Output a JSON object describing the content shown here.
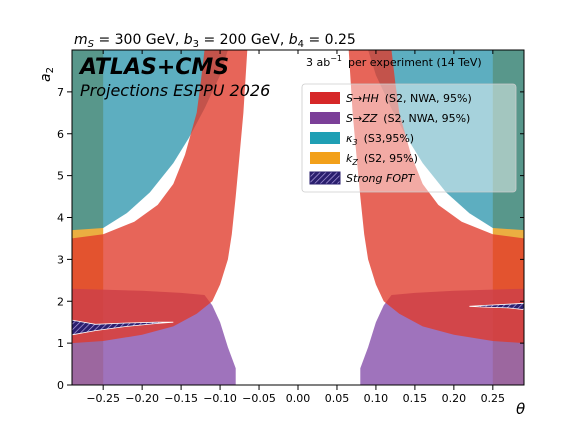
{
  "chart_data": {
    "type": "area",
    "title": "m_S = 300 GeV, b_3 = 200 GeV, b_4 = 0.25",
    "title_parts": {
      "ms_sym": "m",
      "ms_sub": "S",
      "ms_val": " = 300 GeV, ",
      "b3_sym": "b",
      "b3_sub": "3",
      "b3_val": " = 200 GeV, ",
      "b4_sym": "b",
      "b4_sub": "4",
      "b4_val": " = 0.25"
    },
    "experiment": "ATLAS+CMS",
    "projection": "Projections ESPPU 2026",
    "lumi": {
      "value": "3 ab",
      "exponent": "−1",
      "text": "per experiment (14 TeV)"
    },
    "xlabel": "θ",
    "ylabel_sym": "a",
    "ylabel_sub": "2",
    "xlim": [
      -0.29,
      0.29
    ],
    "ylim": [
      0,
      8
    ],
    "xticks": [
      -0.25,
      -0.2,
      -0.15,
      -0.1,
      -0.05,
      0.0,
      0.05,
      0.1,
      0.15,
      0.2,
      0.25
    ],
    "xtick_labels": [
      "−0.25",
      "−0.20",
      "−0.15",
      "−0.10",
      "−0.05",
      "0.00",
      "0.05",
      "0.10",
      "0.15",
      "0.20",
      "0.25"
    ],
    "yticks": [
      0,
      1,
      2,
      3,
      4,
      5,
      6,
      7
    ],
    "ytick_labels": [
      "0",
      "1",
      "2",
      "3",
      "4",
      "5",
      "6",
      "7"
    ],
    "legend_placement": "upper-right",
    "legend": [
      {
        "label_a": "S→HH",
        "label_b": "(S2, NWA, 95%)",
        "color": "#d62728",
        "pattern": false
      },
      {
        "label_a": "S→ZZ",
        "label_b": "(S2, NWA, 95%)",
        "color": "#7b3f98",
        "pattern": false
      },
      {
        "label_a": "κ",
        "label_sub": "3",
        "label_b": "(S3,95%)",
        "color": "#1f9fb4",
        "pattern": false
      },
      {
        "label_a": "k",
        "label_sub": "Z",
        "label_b": "(S2, 95%)",
        "color": "#f2a01a",
        "pattern": false
      },
      {
        "label_a": "Strong FOPT",
        "label_b": "",
        "color": "#2a1f6e",
        "pattern": true
      }
    ],
    "regions": [
      {
        "name": "kZ",
        "color": "#e8a020",
        "opacity": 0.85,
        "polys": [
          [
            [
              -0.29,
              0
            ],
            [
              -0.25,
              0
            ],
            [
              -0.25,
              8
            ],
            [
              -0.29,
              8
            ]
          ],
          [
            [
              0.25,
              0
            ],
            [
              0.29,
              0
            ],
            [
              0.29,
              8
            ],
            [
              0.25,
              8
            ]
          ]
        ]
      },
      {
        "name": "kappa3",
        "color": "#1f8fa8",
        "opacity": 0.72,
        "polys": [
          [
            [
              -0.29,
              3.7
            ],
            [
              -0.25,
              3.75
            ],
            [
              -0.22,
              4.1
            ],
            [
              -0.19,
              4.6
            ],
            [
              -0.16,
              5.3
            ],
            [
              -0.14,
              5.9
            ],
            [
              -0.12,
              6.6
            ],
            [
              -0.1,
              7.4
            ],
            [
              -0.09,
              8
            ],
            [
              -0.29,
              8
            ]
          ],
          [
            [
              0.29,
              3.7
            ],
            [
              0.25,
              3.75
            ],
            [
              0.22,
              4.1
            ],
            [
              0.19,
              4.6
            ],
            [
              0.16,
              5.3
            ],
            [
              0.14,
              5.9
            ],
            [
              0.12,
              6.6
            ],
            [
              0.1,
              7.4
            ],
            [
              0.09,
              8
            ],
            [
              0.29,
              8
            ]
          ]
        ]
      },
      {
        "name": "S_ZZ",
        "color": "#8e5bb0",
        "opacity": 0.85,
        "polys": [
          [
            [
              -0.29,
              0
            ],
            [
              -0.08,
              0
            ],
            [
              -0.08,
              0.4
            ],
            [
              -0.09,
              0.9
            ],
            [
              -0.1,
              1.5
            ],
            [
              -0.11,
              1.9
            ],
            [
              -0.12,
              2.15
            ],
            [
              -0.15,
              2.2
            ],
            [
              -0.2,
              2.25
            ],
            [
              -0.29,
              2.3
            ]
          ],
          [
            [
              0.29,
              0
            ],
            [
              0.08,
              0
            ],
            [
              0.08,
              0.4
            ],
            [
              0.09,
              0.9
            ],
            [
              0.1,
              1.5
            ],
            [
              0.11,
              1.9
            ],
            [
              0.12,
              2.15
            ],
            [
              0.15,
              2.2
            ],
            [
              0.2,
              2.25
            ],
            [
              0.29,
              2.3
            ]
          ]
        ]
      },
      {
        "name": "S_HH",
        "color": "#e03a2a",
        "opacity": 0.78,
        "polys": [
          [
            [
              -0.29,
              1.0
            ],
            [
              -0.25,
              1.05
            ],
            [
              -0.2,
              1.2
            ],
            [
              -0.16,
              1.4
            ],
            [
              -0.13,
              1.7
            ],
            [
              -0.11,
              2.0
            ],
            [
              -0.1,
              2.4
            ],
            [
              -0.09,
              3.0
            ],
            [
              -0.085,
              3.6
            ],
            [
              -0.08,
              4.5
            ],
            [
              -0.075,
              5.5
            ],
            [
              -0.07,
              6.5
            ],
            [
              -0.065,
              8
            ],
            [
              -0.12,
              8
            ],
            [
              -0.125,
              7.2
            ],
            [
              -0.13,
              6.5
            ],
            [
              -0.145,
              5.5
            ],
            [
              -0.16,
              4.8
            ],
            [
              -0.18,
              4.3
            ],
            [
              -0.21,
              3.9
            ],
            [
              -0.25,
              3.6
            ],
            [
              -0.29,
              3.5
            ]
          ],
          [
            [
              0.29,
              1.0
            ],
            [
              0.25,
              1.05
            ],
            [
              0.2,
              1.2
            ],
            [
              0.16,
              1.4
            ],
            [
              0.13,
              1.7
            ],
            [
              0.11,
              2.0
            ],
            [
              0.1,
              2.4
            ],
            [
              0.09,
              3.0
            ],
            [
              0.085,
              3.6
            ],
            [
              0.08,
              4.5
            ],
            [
              0.075,
              5.5
            ],
            [
              0.07,
              6.5
            ],
            [
              0.065,
              8
            ],
            [
              0.12,
              8
            ],
            [
              0.125,
              7.2
            ],
            [
              0.13,
              6.5
            ],
            [
              0.145,
              5.5
            ],
            [
              0.16,
              4.8
            ],
            [
              0.18,
              4.3
            ],
            [
              0.21,
              3.9
            ],
            [
              0.25,
              3.6
            ],
            [
              0.29,
              3.5
            ]
          ]
        ]
      },
      {
        "name": "strong_fopt",
        "color": "#2a1f6e",
        "opacity": 1.0,
        "pattern": true,
        "polys": [
          [
            [
              -0.29,
              1.2
            ],
            [
              -0.26,
              1.3
            ],
            [
              -0.22,
              1.4
            ],
            [
              -0.18,
              1.47
            ],
            [
              -0.16,
              1.5
            ],
            [
              -0.18,
              1.5
            ],
            [
              -0.22,
              1.48
            ],
            [
              -0.26,
              1.45
            ],
            [
              -0.29,
              1.55
            ]
          ],
          [
            [
              0.29,
              1.95
            ],
            [
              0.27,
              1.93
            ],
            [
              0.24,
              1.9
            ],
            [
              0.22,
              1.88
            ],
            [
              0.24,
              1.86
            ],
            [
              0.27,
              1.84
            ],
            [
              0.29,
              1.8
            ]
          ]
        ]
      }
    ]
  }
}
